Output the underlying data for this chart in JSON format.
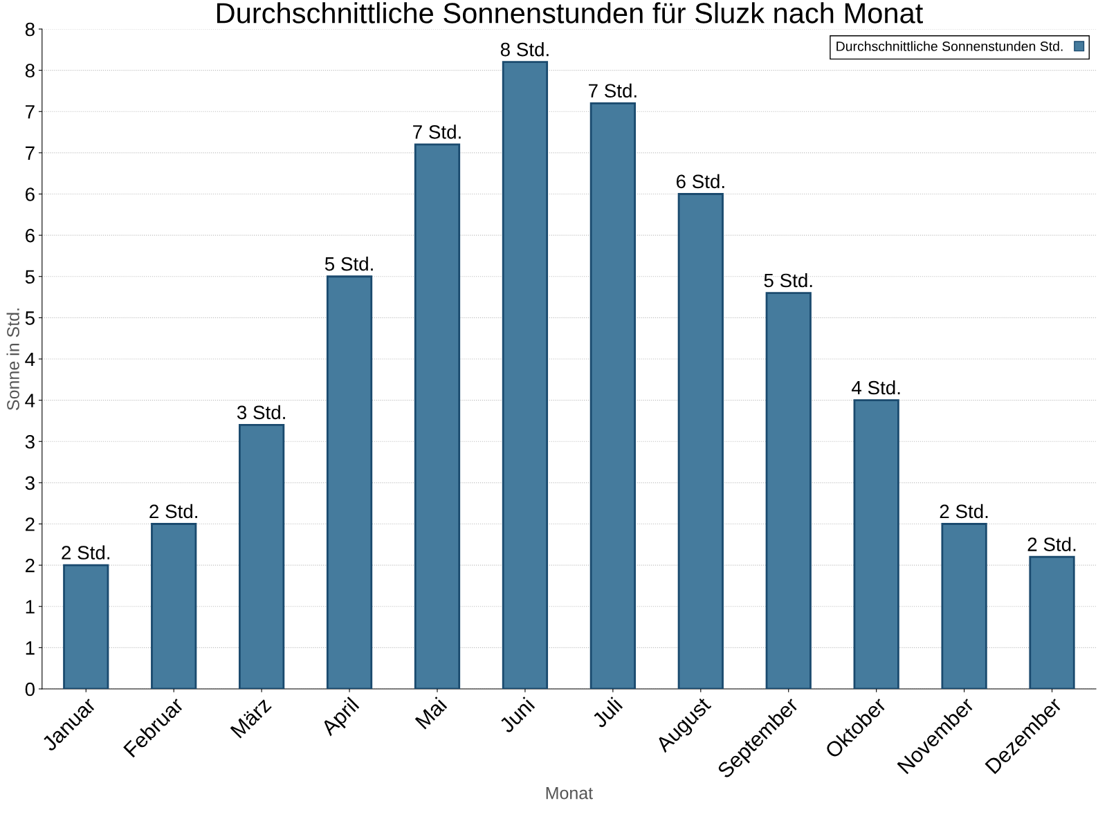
{
  "chart_data": {
    "type": "bar",
    "title": "Durchschnittliche Sonnenstunden für Sluzk nach Monat",
    "xlabel": "Monat",
    "ylabel": "Sonne in Std.",
    "categories": [
      "Januar",
      "Februar",
      "März",
      "April",
      "Mai",
      "Juni",
      "Juli",
      "August",
      "September",
      "Oktober",
      "November",
      "Dezember"
    ],
    "series": [
      {
        "name": "Durchschnittliche Sonnenstunden Std.",
        "color": "#457b9d",
        "values": [
          1.5,
          2.0,
          3.2,
          5.0,
          6.6,
          7.6,
          7.1,
          6.0,
          4.8,
          3.5,
          2.0,
          1.6
        ],
        "value_labels": [
          "2 Std.",
          "2 Std.",
          "3 Std.",
          "5 Std.",
          "7 Std.",
          "8 Std.",
          "7 Std.",
          "6 Std.",
          "5 Std.",
          "4 Std.",
          "2 Std.",
          "2 Std."
        ]
      }
    ],
    "ylim": [
      0,
      8
    ],
    "yticks": [
      0,
      {
        "value": 0.5,
        "label": "1"
      },
      1,
      {
        "value": 1.5,
        "label": "2"
      },
      2,
      {
        "value": 2.5,
        "label": "3"
      },
      3,
      {
        "value": 3.5,
        "label": "4"
      },
      4,
      {
        "value": 4.5,
        "label": "5"
      },
      5,
      {
        "value": 5.5,
        "label": "6"
      },
      6,
      {
        "value": 6.5,
        "label": "7"
      },
      7,
      {
        "value": 7.5,
        "label": "8"
      },
      8
    ],
    "grid": "y",
    "legend": "top right"
  }
}
